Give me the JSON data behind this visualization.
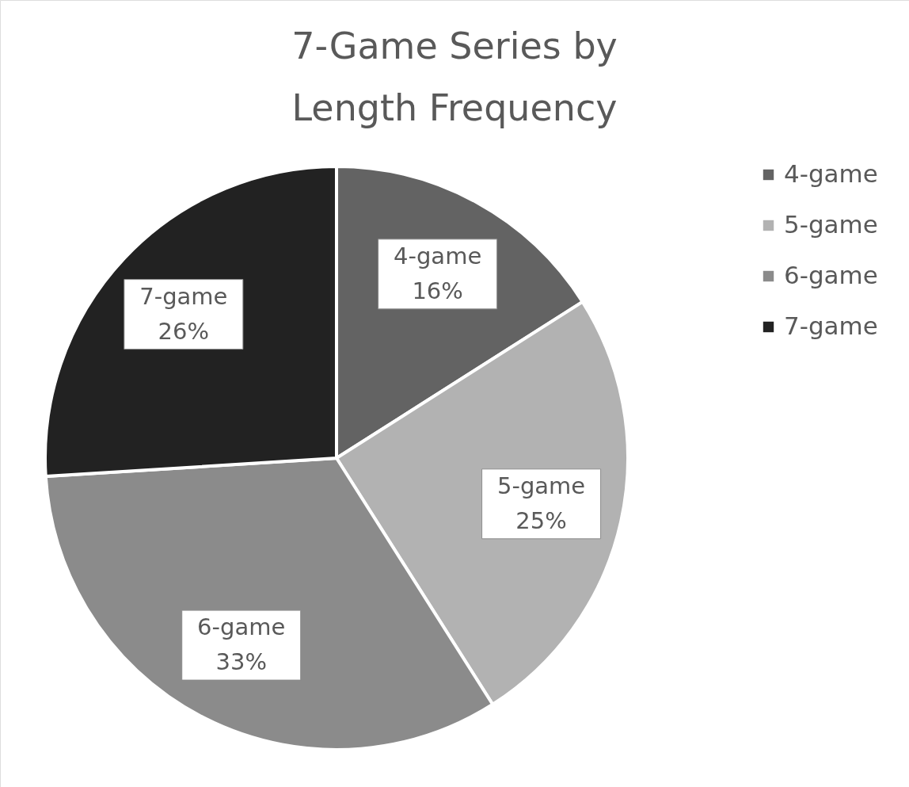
{
  "chart_data": {
    "type": "pie",
    "title": "7-Game Series by Length Frequency",
    "categories": [
      "4-game",
      "5-game",
      "6-game",
      "7-game"
    ],
    "values": [
      16,
      25,
      33,
      26
    ],
    "value_labels": [
      "16%",
      "25%",
      "33%",
      "26%"
    ],
    "colors": [
      "#636363",
      "#b2b2b2",
      "#8b8b8b",
      "#222222"
    ],
    "legend": "right"
  }
}
